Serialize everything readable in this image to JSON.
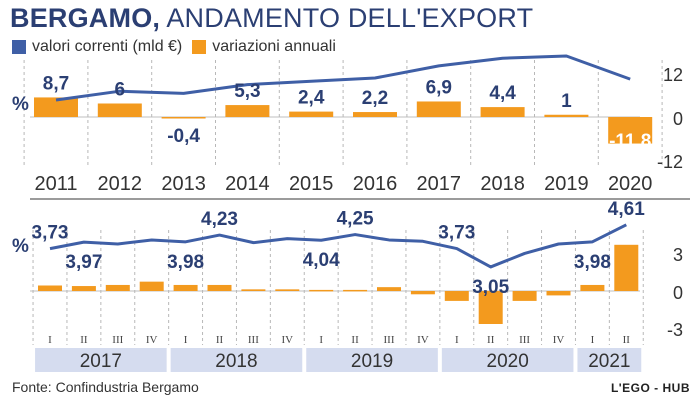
{
  "title": {
    "bold": "BERGAMO,",
    "rest": "ANDAMENTO DELL'EXPORT"
  },
  "legend": [
    {
      "label": "valori correnti (mld €)",
      "color": "#3f5fa6"
    },
    {
      "label": "variazioni annuali",
      "color": "#f39a1e"
    }
  ],
  "colors": {
    "line": "#3f5fa6",
    "bar": "#f39a1e",
    "text": "#2b3f73",
    "band": "#d5dcef"
  },
  "source": "Fonte: Confindustria Bergamo",
  "credit": "L'EGO - HUB",
  "chart_data": [
    {
      "type": "bar+line",
      "categories": [
        "2011",
        "2012",
        "2013",
        "2014",
        "2015",
        "2016",
        "2017",
        "2018",
        "2019",
        "2020"
      ],
      "series": [
        {
          "name": "variazioni annuali",
          "kind": "bar",
          "values": [
            8.7,
            6,
            -0.4,
            5.3,
            2.4,
            2.2,
            6.9,
            4.4,
            1,
            -11.8
          ],
          "labels": [
            "8,7",
            "6",
            "-0,4",
            "5,3",
            "2,4",
            "2,2",
            "6,9",
            "4,4",
            "1",
            "-11,8"
          ]
        },
        {
          "name": "valori correnti (mld €)",
          "kind": "line",
          "values": [
            13.6,
            14.4,
            14.2,
            15.0,
            15.3,
            15.6,
            16.7,
            17.4,
            17.6,
            15.5
          ]
        }
      ],
      "axis_symbol": "%",
      "right_ticks": [
        "12",
        "0",
        "-12"
      ],
      "ylim": [
        -12,
        12
      ]
    },
    {
      "type": "bar+line",
      "categories": [
        "I",
        "II",
        "III",
        "IV",
        "I",
        "II",
        "III",
        "IV",
        "I",
        "II",
        "III",
        "IV",
        "I",
        "II",
        "III",
        "IV",
        "I",
        "II"
      ],
      "years": [
        "2017",
        "2018",
        "2019",
        "2020",
        "2021"
      ],
      "series": [
        {
          "name": "variazioni annuali",
          "kind": "bar",
          "values": [
            0.5,
            0.45,
            0.55,
            0.85,
            0.55,
            0.55,
            0.15,
            0.15,
            0.1,
            0.1,
            0.35,
            -0.3,
            -0.9,
            -3.0,
            -0.9,
            -0.4,
            0.55,
            4.2
          ]
        },
        {
          "name": "valori correnti (mld €)",
          "kind": "line",
          "values": [
            3.73,
            3.97,
            3.9,
            4.05,
            3.98,
            4.23,
            3.95,
            4.1,
            4.04,
            4.25,
            4.05,
            4.0,
            3.73,
            3.05,
            3.55,
            3.9,
            3.98,
            4.61
          ]
        },
        {
          "name": "labels",
          "kind": "point_labels",
          "points": [
            {
              "index": 0,
              "label": "3,73",
              "pos": "above"
            },
            {
              "index": 1,
              "label": "3,97",
              "pos": "below"
            },
            {
              "index": 4,
              "label": "3,98",
              "pos": "below"
            },
            {
              "index": 5,
              "label": "4,23",
              "pos": "above"
            },
            {
              "index": 8,
              "label": "4,04",
              "pos": "below"
            },
            {
              "index": 9,
              "label": "4,25",
              "pos": "above"
            },
            {
              "index": 12,
              "label": "3,73",
              "pos": "above"
            },
            {
              "index": 13,
              "label": "3,05",
              "pos": "below"
            },
            {
              "index": 16,
              "label": "3,98",
              "pos": "below"
            },
            {
              "index": 17,
              "label": "4,61",
              "pos": "above"
            }
          ]
        }
      ],
      "axis_symbol": "%",
      "right_ticks": [
        "3",
        "0",
        "-3"
      ],
      "ylim": [
        -3,
        3
      ]
    }
  ]
}
